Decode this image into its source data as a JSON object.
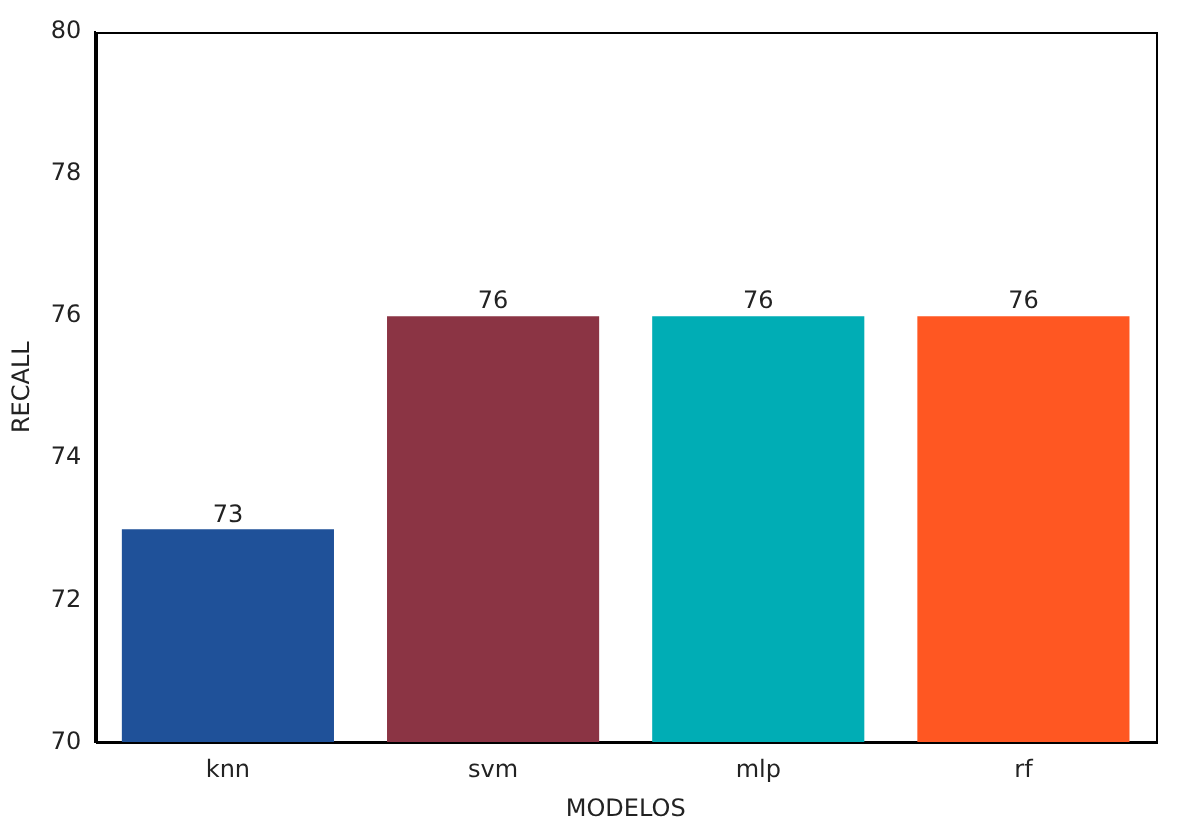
{
  "chart_data": {
    "type": "bar",
    "xlabel": "MODELOS",
    "ylabel": "RECALL",
    "categories": [
      "knn",
      "svm",
      "mlp",
      "rf"
    ],
    "values": [
      73,
      76,
      76,
      76
    ],
    "colors": [
      "#1f5199",
      "#8b3444",
      "#00adb5",
      "#ff5722"
    ],
    "ylim": [
      70,
      80
    ],
    "yticks": [
      70,
      72,
      74,
      76,
      78,
      80
    ],
    "grid": false,
    "legend": false,
    "data_labels": true
  }
}
